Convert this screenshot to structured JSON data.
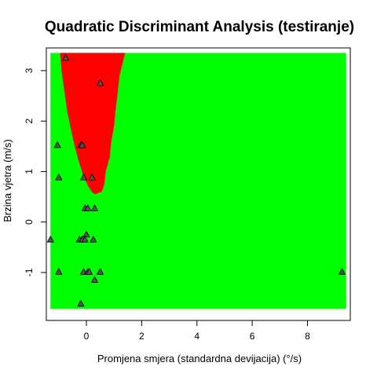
{
  "chart_data": {
    "type": "scatter",
    "title": "Quadratic Discriminant Analysis (testiranje)",
    "xlabel": "Promjena smjera (standardna devijacija) (°/s)",
    "ylabel": "Brzina vjetra (m/s)",
    "xlim": [
      -1.45,
      9.55
    ],
    "ylim": [
      -1.95,
      3.45
    ],
    "grid": false,
    "x_ticks": [
      0,
      2,
      4,
      6,
      8
    ],
    "y_ticks": [
      -1,
      0,
      1,
      2,
      3
    ],
    "background_region": {
      "x_range": [
        -1.3,
        9.4
      ],
      "y_range": [
        -1.72,
        3.35
      ],
      "colors": {
        "class_a": "#ff0000",
        "class_b": "#00ff00"
      }
    },
    "decision_boundary_class_a": [
      [
        -0.95,
        3.35
      ],
      [
        -0.9,
        3.0
      ],
      [
        -0.8,
        2.6
      ],
      [
        -0.7,
        2.2
      ],
      [
        -0.55,
        1.8
      ],
      [
        -0.4,
        1.45
      ],
      [
        -0.25,
        1.15
      ],
      [
        -0.1,
        0.9
      ],
      [
        0.05,
        0.72
      ],
      [
        0.2,
        0.6
      ],
      [
        0.3,
        0.55
      ],
      [
        0.55,
        0.6
      ],
      [
        0.65,
        0.75
      ],
      [
        0.7,
        1.0
      ],
      [
        0.85,
        1.3
      ],
      [
        0.9,
        1.6
      ],
      [
        1.0,
        1.9
      ],
      [
        1.05,
        2.2
      ],
      [
        1.12,
        2.5
      ],
      [
        1.2,
        2.9
      ],
      [
        1.4,
        3.35
      ]
    ],
    "points": [
      {
        "x": -0.75,
        "y": 3.25
      },
      {
        "x": 0.5,
        "y": 2.75
      },
      {
        "x": -1.05,
        "y": 1.52
      },
      {
        "x": -0.2,
        "y": 1.52
      },
      {
        "x": -0.15,
        "y": 1.52
      },
      {
        "x": -1.0,
        "y": 0.88
      },
      {
        "x": -0.1,
        "y": 0.88
      },
      {
        "x": 0.2,
        "y": 0.88
      },
      {
        "x": -0.05,
        "y": 0.27
      },
      {
        "x": 0.05,
        "y": 0.27
      },
      {
        "x": 0.3,
        "y": 0.27
      },
      {
        "x": 0.0,
        "y": -0.25
      },
      {
        "x": -1.3,
        "y": -0.35
      },
      {
        "x": -0.25,
        "y": -0.35
      },
      {
        "x": -0.15,
        "y": -0.35
      },
      {
        "x": -0.05,
        "y": -0.35
      },
      {
        "x": 0.25,
        "y": -0.35
      },
      {
        "x": -1.0,
        "y": -0.99
      },
      {
        "x": -0.1,
        "y": -0.99
      },
      {
        "x": 0.05,
        "y": -0.99
      },
      {
        "x": 0.1,
        "y": -0.99
      },
      {
        "x": 0.5,
        "y": -0.99
      },
      {
        "x": 0.3,
        "y": -1.15
      },
      {
        "x": -0.2,
        "y": -1.62
      },
      {
        "x": 9.25,
        "y": -0.99
      }
    ]
  }
}
